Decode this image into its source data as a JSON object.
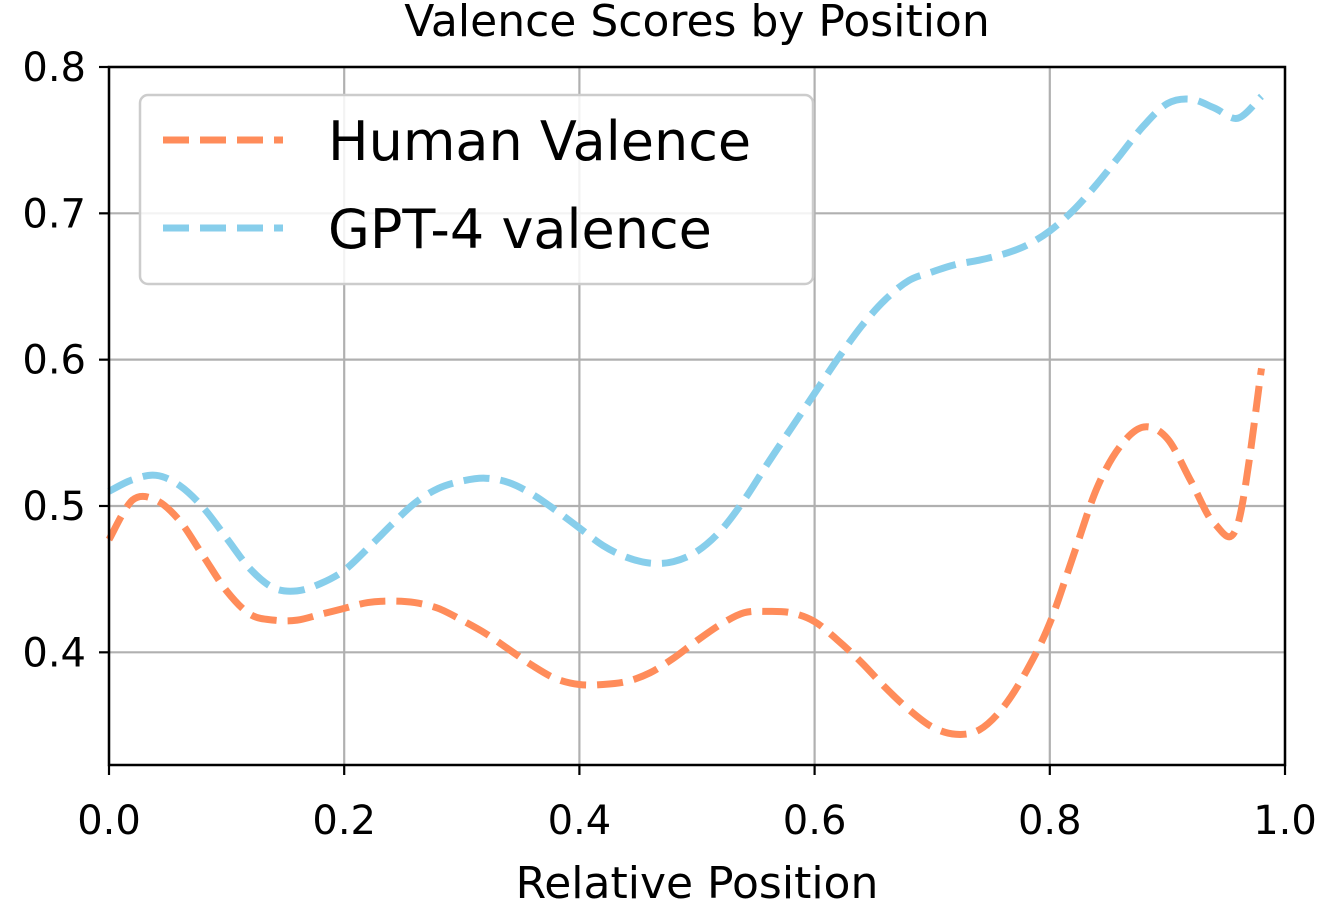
{
  "chart_data": {
    "type": "line",
    "title": "Valence Scores by Position",
    "xlabel": "Relative Position",
    "ylabel": "",
    "xlim": [
      0.0,
      1.0
    ],
    "ylim": [
      0.323,
      0.8
    ],
    "xticks": [
      0.0,
      0.2,
      0.4,
      0.6,
      0.8,
      1.0
    ],
    "xtick_labels": [
      "0.0",
      "0.2",
      "0.4",
      "0.6",
      "0.8",
      "1.0"
    ],
    "yticks": [
      0.4,
      0.5,
      0.6,
      0.7,
      0.8
    ],
    "ytick_labels": [
      "0.4",
      "0.5",
      "0.6",
      "0.7",
      "0.8"
    ],
    "grid": true,
    "legend_position": "top-left",
    "series": [
      {
        "name": "Human Valence",
        "color": "#FF8C5A",
        "dash": "dashed",
        "x": [
          0.0,
          0.02,
          0.04,
          0.06,
          0.08,
          0.1,
          0.12,
          0.14,
          0.16,
          0.18,
          0.2,
          0.22,
          0.24,
          0.26,
          0.28,
          0.3,
          0.32,
          0.34,
          0.36,
          0.38,
          0.4,
          0.42,
          0.44,
          0.46,
          0.48,
          0.5,
          0.52,
          0.54,
          0.56,
          0.58,
          0.6,
          0.62,
          0.64,
          0.66,
          0.68,
          0.7,
          0.72,
          0.74,
          0.76,
          0.78,
          0.8,
          0.82,
          0.84,
          0.86,
          0.88,
          0.9,
          0.92,
          0.94,
          0.96,
          0.98
        ],
        "y": [
          0.477,
          0.504,
          0.504,
          0.49,
          0.466,
          0.442,
          0.426,
          0.422,
          0.422,
          0.426,
          0.43,
          0.434,
          0.435,
          0.434,
          0.43,
          0.422,
          0.413,
          0.402,
          0.391,
          0.382,
          0.378,
          0.378,
          0.38,
          0.386,
          0.396,
          0.408,
          0.419,
          0.427,
          0.428,
          0.427,
          0.421,
          0.408,
          0.393,
          0.376,
          0.361,
          0.349,
          0.344,
          0.347,
          0.362,
          0.387,
          0.42,
          0.466,
          0.512,
          0.541,
          0.554,
          0.546,
          0.517,
          0.488,
          0.488,
          0.594
        ]
      },
      {
        "name": "GPT-4 valence",
        "color": "#87CEEB",
        "dash": "dashed",
        "x": [
          0.0,
          0.02,
          0.04,
          0.06,
          0.08,
          0.1,
          0.12,
          0.14,
          0.16,
          0.18,
          0.2,
          0.22,
          0.24,
          0.26,
          0.28,
          0.3,
          0.32,
          0.34,
          0.36,
          0.38,
          0.4,
          0.42,
          0.44,
          0.46,
          0.48,
          0.5,
          0.52,
          0.54,
          0.56,
          0.58,
          0.6,
          0.62,
          0.64,
          0.66,
          0.68,
          0.7,
          0.72,
          0.74,
          0.76,
          0.78,
          0.8,
          0.82,
          0.84,
          0.86,
          0.88,
          0.9,
          0.92,
          0.94,
          0.96,
          0.98
        ],
        "y": [
          0.51,
          0.518,
          0.521,
          0.514,
          0.499,
          0.478,
          0.457,
          0.444,
          0.442,
          0.447,
          0.456,
          0.471,
          0.487,
          0.502,
          0.512,
          0.517,
          0.519,
          0.516,
          0.508,
          0.497,
          0.485,
          0.473,
          0.465,
          0.461,
          0.462,
          0.469,
          0.483,
          0.504,
          0.529,
          0.553,
          0.577,
          0.601,
          0.623,
          0.641,
          0.654,
          0.66,
          0.665,
          0.668,
          0.672,
          0.678,
          0.688,
          0.702,
          0.72,
          0.74,
          0.76,
          0.775,
          0.778,
          0.772,
          0.765,
          0.78
        ]
      }
    ]
  }
}
